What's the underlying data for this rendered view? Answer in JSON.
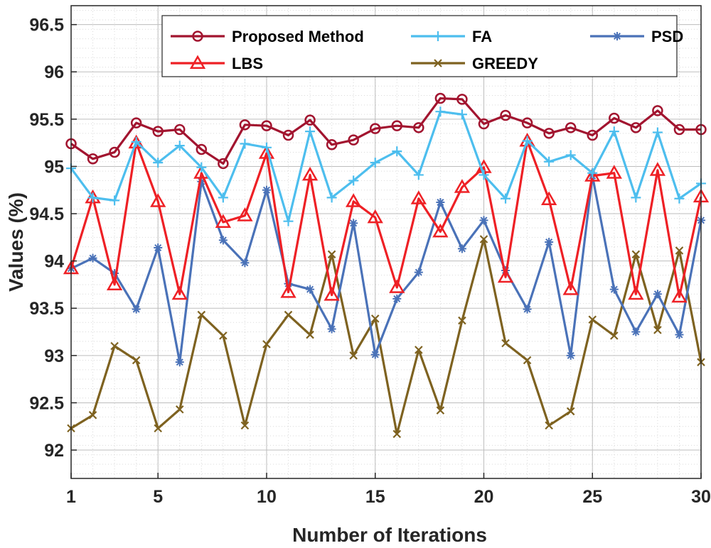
{
  "chart_data": {
    "type": "line",
    "title": "",
    "xlabel": "Number of Iterations",
    "ylabel": "Values (%)",
    "xlim": [
      1,
      30
    ],
    "ylim": [
      91.7,
      96.7
    ],
    "xticks": [
      1,
      5,
      10,
      15,
      20,
      25,
      30
    ],
    "yticks": [
      92,
      92.5,
      93,
      93.5,
      94,
      94.5,
      95,
      95.5,
      96,
      96.5
    ],
    "grid": true,
    "minor_grid": true,
    "legend_position": "top",
    "x": [
      1,
      2,
      3,
      4,
      5,
      6,
      7,
      8,
      9,
      10,
      11,
      12,
      13,
      14,
      15,
      16,
      17,
      18,
      19,
      20,
      21,
      22,
      23,
      24,
      25,
      26,
      27,
      28,
      29,
      30
    ],
    "series": [
      {
        "name": "Proposed Method",
        "color": "#A2142F",
        "marker": "circle",
        "values": [
          95.24,
          95.08,
          95.15,
          95.46,
          95.37,
          95.39,
          95.18,
          95.03,
          95.44,
          95.43,
          95.33,
          95.49,
          95.23,
          95.28,
          95.4,
          95.43,
          95.41,
          95.72,
          95.71,
          95.45,
          95.54,
          95.46,
          95.35,
          95.41,
          95.33,
          95.51,
          95.41,
          95.59,
          95.39,
          95.39
        ]
      },
      {
        "name": "FA",
        "color": "#4DBEEE",
        "marker": "plus",
        "values": [
          94.98,
          94.67,
          94.64,
          95.26,
          95.04,
          95.22,
          94.99,
          94.67,
          95.24,
          95.2,
          94.42,
          95.37,
          94.67,
          94.85,
          95.04,
          95.16,
          94.91,
          95.58,
          95.55,
          94.91,
          94.66,
          95.27,
          95.05,
          95.12,
          94.93,
          95.37,
          94.67,
          95.36,
          94.66,
          94.82
        ]
      },
      {
        "name": "PSD",
        "color": "#4A72B8",
        "marker": "asterisk",
        "values": [
          93.92,
          94.03,
          93.87,
          93.49,
          94.14,
          92.93,
          94.84,
          94.22,
          93.98,
          94.75,
          93.76,
          93.7,
          93.28,
          94.4,
          93.01,
          93.6,
          93.88,
          94.62,
          94.13,
          94.43,
          93.9,
          93.49,
          94.2,
          93.0,
          94.9,
          93.7,
          93.25,
          93.65,
          93.22,
          94.43
        ]
      },
      {
        "name": "LBS",
        "color": "#EE2025",
        "marker": "triangle",
        "values": [
          93.92,
          94.67,
          93.75,
          95.25,
          94.63,
          93.65,
          94.93,
          94.41,
          94.48,
          95.14,
          93.67,
          94.91,
          93.64,
          94.63,
          94.46,
          93.72,
          94.66,
          94.31,
          94.78,
          94.99,
          93.83,
          95.27,
          94.65,
          93.7,
          94.9,
          94.93,
          93.65,
          94.96,
          93.62,
          94.68
        ]
      },
      {
        "name": "GREEDY",
        "color": "#7E6220",
        "marker": "x",
        "values": [
          92.23,
          92.37,
          93.1,
          92.95,
          92.23,
          92.43,
          93.43,
          93.21,
          92.26,
          93.12,
          93.43,
          93.22,
          94.07,
          93.0,
          93.39,
          92.17,
          93.06,
          92.42,
          93.37,
          94.23,
          93.13,
          92.95,
          92.26,
          92.41,
          93.38,
          93.21,
          94.07,
          93.27,
          94.11,
          92.93
        ]
      }
    ]
  }
}
